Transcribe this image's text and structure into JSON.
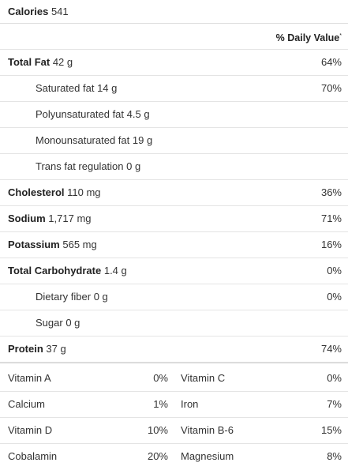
{
  "calories": {
    "label": "Calories",
    "value": "541"
  },
  "daily_value_header": {
    "label": "% Daily Value",
    "marker": "*"
  },
  "nutrients": [
    {
      "label": "Total Fat",
      "amount": "42 g",
      "dv": "64%"
    },
    {
      "label": "Saturated fat",
      "amount": "14 g",
      "dv": "70%"
    },
    {
      "label": "Polyunsaturated fat",
      "amount": "4.5 g",
      "dv": ""
    },
    {
      "label": "Monounsaturated fat",
      "amount": "19 g",
      "dv": ""
    },
    {
      "label": "Trans fat regulation",
      "amount": "0 g",
      "dv": ""
    },
    {
      "label": "Cholesterol",
      "amount": "110 mg",
      "dv": "36%"
    },
    {
      "label": "Sodium",
      "amount": "1,717 mg",
      "dv": "71%"
    },
    {
      "label": "Potassium",
      "amount": "565 mg",
      "dv": "16%"
    },
    {
      "label": "Total Carbohydrate",
      "amount": "1.4 g",
      "dv": "0%"
    },
    {
      "label": "Dietary fiber",
      "amount": "0 g",
      "dv": "0%"
    },
    {
      "label": "Sugar",
      "amount": "0 g",
      "dv": ""
    },
    {
      "label": "Protein",
      "amount": "37 g",
      "dv": "74%"
    }
  ],
  "vitamins": [
    {
      "name1": "Vitamin A",
      "pct1": "0%",
      "name2": "Vitamin C",
      "pct2": "0%"
    },
    {
      "name1": "Calcium",
      "pct1": "1%",
      "name2": "Iron",
      "pct2": "7%"
    },
    {
      "name1": "Vitamin D",
      "pct1": "10%",
      "name2": "Vitamin B-6",
      "pct2": "15%"
    },
    {
      "name1": "Cobalamin",
      "pct1": "20%",
      "name2": "Magnesium",
      "pct2": "8%"
    }
  ]
}
